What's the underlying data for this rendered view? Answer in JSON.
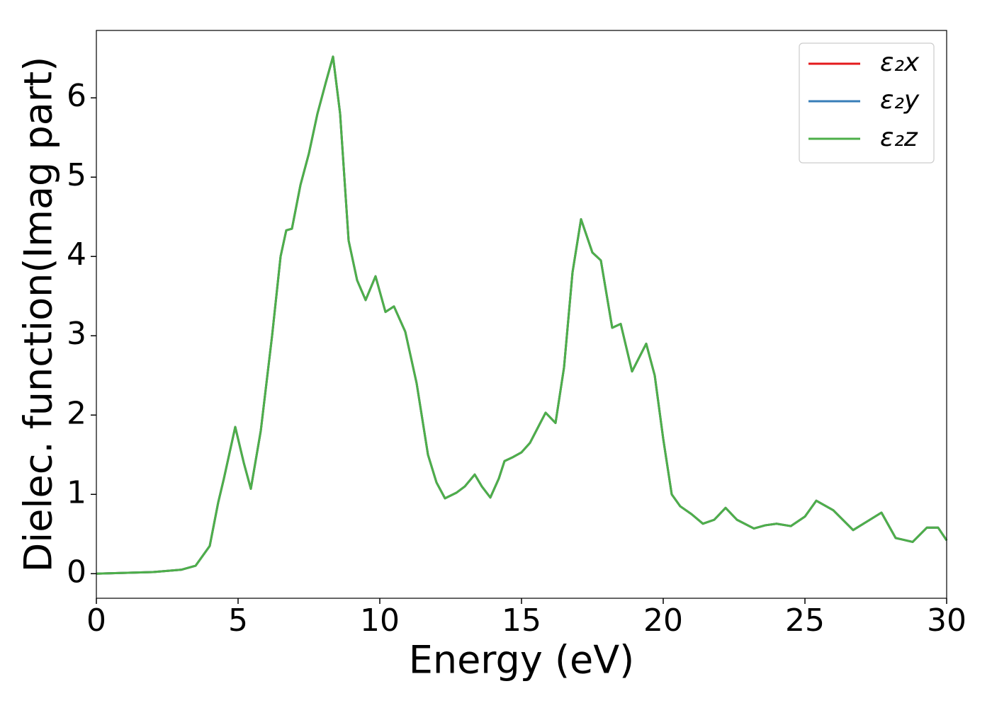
{
  "chart_data": {
    "type": "line",
    "xlabel": "Energy (eV)",
    "ylabel": "Dielec. function(Imag part)",
    "x": [
      0,
      1,
      2,
      3,
      3.5,
      4,
      4.3,
      4.5,
      4.9,
      5.2,
      5.45,
      5.8,
      6.2,
      6.5,
      6.7,
      6.9,
      7.2,
      7.5,
      7.8,
      8.1,
      8.35,
      8.6,
      8.9,
      9.2,
      9.5,
      9.85,
      10.2,
      10.5,
      10.9,
      11.3,
      11.7,
      12.0,
      12.3,
      12.7,
      13.0,
      13.35,
      13.6,
      13.9,
      14.2,
      14.4,
      14.7,
      15.0,
      15.3,
      15.85,
      16.2,
      16.5,
      16.8,
      17.1,
      17.5,
      17.8,
      18.2,
      18.5,
      18.9,
      19.4,
      19.7,
      20.0,
      20.3,
      20.6,
      21.0,
      21.4,
      21.8,
      22.2,
      22.6,
      23.2,
      23.6,
      24.0,
      24.5,
      25.0,
      25.4,
      26.0,
      26.7,
      27.2,
      27.7,
      28.2,
      28.8,
      29.3,
      29.7,
      30
    ],
    "series": [
      {
        "name": "ε₂x",
        "color": "#e41a1c",
        "values": [
          0,
          0.01,
          0.02,
          0.05,
          0.1,
          0.35,
          0.9,
          1.2,
          1.85,
          1.4,
          1.07,
          1.8,
          3.0,
          4.0,
          4.33,
          4.35,
          4.9,
          5.3,
          5.8,
          6.2,
          6.52,
          5.8,
          4.2,
          3.7,
          3.45,
          3.75,
          3.3,
          3.37,
          3.05,
          2.4,
          1.5,
          1.15,
          0.95,
          1.02,
          1.1,
          1.25,
          1.1,
          0.96,
          1.2,
          1.42,
          1.47,
          1.53,
          1.65,
          2.03,
          1.9,
          2.6,
          3.8,
          4.47,
          4.05,
          3.95,
          3.1,
          3.15,
          2.55,
          2.9,
          2.5,
          1.7,
          1.0,
          0.85,
          0.75,
          0.63,
          0.68,
          0.83,
          0.68,
          0.57,
          0.61,
          0.63,
          0.6,
          0.72,
          0.92,
          0.8,
          0.55,
          0.66,
          0.77,
          0.45,
          0.4,
          0.58,
          0.58,
          0.42
        ]
      },
      {
        "name": "ε₂y",
        "color": "#377eb8",
        "values": [
          0,
          0.01,
          0.02,
          0.05,
          0.1,
          0.35,
          0.9,
          1.2,
          1.85,
          1.4,
          1.07,
          1.8,
          3.0,
          4.0,
          4.33,
          4.35,
          4.9,
          5.3,
          5.8,
          6.2,
          6.52,
          5.8,
          4.2,
          3.7,
          3.45,
          3.75,
          3.3,
          3.37,
          3.05,
          2.4,
          1.5,
          1.15,
          0.95,
          1.02,
          1.1,
          1.25,
          1.1,
          0.96,
          1.2,
          1.42,
          1.47,
          1.53,
          1.65,
          2.03,
          1.9,
          2.6,
          3.8,
          4.47,
          4.05,
          3.95,
          3.1,
          3.15,
          2.55,
          2.9,
          2.5,
          1.7,
          1.0,
          0.85,
          0.75,
          0.63,
          0.68,
          0.83,
          0.68,
          0.57,
          0.61,
          0.63,
          0.6,
          0.72,
          0.92,
          0.8,
          0.55,
          0.66,
          0.77,
          0.45,
          0.4,
          0.58,
          0.58,
          0.42
        ]
      },
      {
        "name": "ε₂z",
        "color": "#4daf4a",
        "values": [
          0,
          0.01,
          0.02,
          0.05,
          0.1,
          0.35,
          0.9,
          1.2,
          1.85,
          1.4,
          1.07,
          1.8,
          3.0,
          4.0,
          4.33,
          4.35,
          4.9,
          5.3,
          5.8,
          6.2,
          6.52,
          5.8,
          4.2,
          3.7,
          3.45,
          3.75,
          3.3,
          3.37,
          3.05,
          2.4,
          1.5,
          1.15,
          0.95,
          1.02,
          1.1,
          1.25,
          1.1,
          0.96,
          1.2,
          1.42,
          1.47,
          1.53,
          1.65,
          2.03,
          1.9,
          2.6,
          3.8,
          4.47,
          4.05,
          3.95,
          3.1,
          3.15,
          2.55,
          2.9,
          2.5,
          1.7,
          1.0,
          0.85,
          0.75,
          0.63,
          0.68,
          0.83,
          0.68,
          0.57,
          0.61,
          0.63,
          0.6,
          0.72,
          0.92,
          0.8,
          0.55,
          0.66,
          0.77,
          0.45,
          0.4,
          0.58,
          0.58,
          0.42
        ]
      }
    ],
    "xlim": [
      0,
      30
    ],
    "xticks": [
      0,
      5,
      10,
      15,
      20,
      25,
      30
    ],
    "ylim": [
      -0.31,
      6.85
    ],
    "yticks": [
      0,
      1,
      2,
      3,
      4,
      5,
      6
    ],
    "grid": false,
    "legend": "upper right"
  }
}
